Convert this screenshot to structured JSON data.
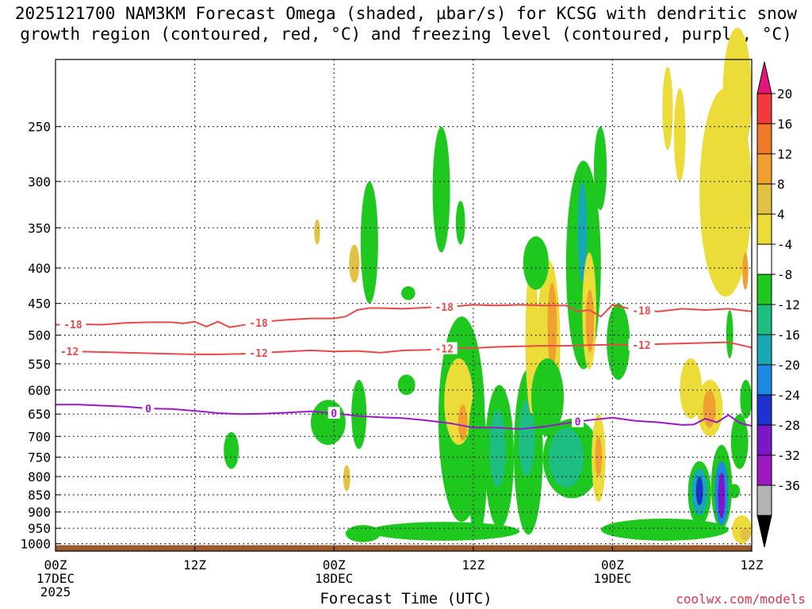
{
  "title": {
    "line1": "2025121700 NAM3KM Forecast Omega (shaded, µbar/s) for KCSG with dendritic snow",
    "line2": "growth region (contoured, red, °C) and freezing level (contoured, purple, °C)"
  },
  "xlabel": "Forecast Time (UTC)",
  "credit": "coolwx.com/models",
  "chart_data": {
    "type": "heatmap",
    "x_unit": "forecast hour from 2025-12-17 00Z",
    "xlim": [
      0,
      60
    ],
    "ylim": [
      1025,
      200
    ],
    "y_scale": "log",
    "grid": true,
    "x_ticks": [
      {
        "x": 0,
        "line1": "00Z",
        "line2": "17DEC",
        "line3": "2025"
      },
      {
        "x": 12,
        "line1": "12Z",
        "line2": "",
        "line3": ""
      },
      {
        "x": 24,
        "line1": "00Z",
        "line2": "18DEC",
        "line3": ""
      },
      {
        "x": 36,
        "line1": "12Z",
        "line2": "",
        "line3": ""
      },
      {
        "x": 48,
        "line1": "00Z",
        "line2": "19DEC",
        "line3": ""
      },
      {
        "x": 60,
        "line1": "12Z",
        "line2": "",
        "line3": ""
      }
    ],
    "y_ticks": [
      "250",
      "300",
      "350",
      "400",
      "450",
      "500",
      "550",
      "600",
      "650",
      "700",
      "750",
      "800",
      "850",
      "900",
      "950",
      "1000"
    ],
    "ground_pressure": 1005,
    "colorbar": {
      "labels": [
        "20",
        "16",
        "12",
        "8",
        "4",
        "-4",
        "-8",
        "-12",
        "-16",
        "-20",
        "-24",
        "-28",
        "-32",
        "-36"
      ],
      "colors": [
        "#e6157a",
        "#f23a3a",
        "#f0782a",
        "#f0a030",
        "#e2c244",
        "#ecdc3a",
        "#ffffff",
        "#1ec81e",
        "#1ebe82",
        "#18a8b4",
        "#1e88e0",
        "#1e32d0",
        "#7a18c8",
        "#a018c0",
        "#b4b4b4",
        "#000000"
      ]
    },
    "omega_colors": {
      "yellow": "#ecdc3a",
      "gold": "#e2c244",
      "orange": "#f0a030",
      "green": "#1ec81e",
      "teal": "#1ebe82",
      "cyan": "#18a8b4",
      "blue": "#1e88e0",
      "navy": "#1e32d0",
      "purple": "#7a18c8"
    },
    "omega_areas": [
      {
        "c": "green",
        "x": [
          14.5,
          15.8
        ],
        "p": [
          690,
          780
        ]
      },
      {
        "c": "gold",
        "x": [
          22.3,
          22.8
        ],
        "p": [
          340,
          370
        ]
      },
      {
        "c": "green",
        "x": [
          25,
          28
        ],
        "p": [
          940,
          995
        ]
      },
      {
        "c": "green",
        "x": [
          27,
          40
        ],
        "p": [
          930,
          990
        ]
      },
      {
        "c": "green",
        "x": [
          22,
          25
        ],
        "p": [
          620,
          720
        ]
      },
      {
        "c": "green",
        "x": [
          25.5,
          26.8
        ],
        "p": [
          580,
          730
        ]
      },
      {
        "c": "gold",
        "x": [
          24.8,
          25.4
        ],
        "p": [
          770,
          840
        ]
      },
      {
        "c": "green",
        "x": [
          26.3,
          27.8
        ],
        "p": [
          300,
          450
        ]
      },
      {
        "c": "gold",
        "x": [
          25.3,
          26.2
        ],
        "p": [
          370,
          420
        ]
      },
      {
        "c": "green",
        "x": [
          29.8,
          31
        ],
        "p": [
          425,
          445
        ]
      },
      {
        "c": "green",
        "x": [
          32.5,
          34
        ],
        "p": [
          250,
          380
        ]
      },
      {
        "c": "green",
        "x": [
          34.5,
          35.3
        ],
        "p": [
          320,
          370
        ]
      },
      {
        "c": "green",
        "x": [
          33,
          37
        ],
        "p": [
          470,
          930
        ]
      },
      {
        "c": "yellow",
        "x": [
          33.5,
          36
        ],
        "p": [
          540,
          720
        ]
      },
      {
        "c": "orange",
        "x": [
          34.7,
          35.5
        ],
        "p": [
          630,
          710
        ]
      },
      {
        "c": "green",
        "x": [
          35.5,
          37.2
        ],
        "p": [
          600,
          980
        ]
      },
      {
        "c": "green",
        "x": [
          37,
          39.5
        ],
        "p": [
          590,
          950
        ]
      },
      {
        "c": "teal",
        "x": [
          37.4,
          38.8
        ],
        "p": [
          640,
          830
        ]
      },
      {
        "c": "green",
        "x": [
          39.5,
          42
        ],
        "p": [
          560,
          970
        ]
      },
      {
        "c": "teal",
        "x": [
          39.9,
          41.3
        ],
        "p": [
          620,
          800
        ]
      },
      {
        "c": "yellow",
        "x": [
          40.5,
          41.6
        ],
        "p": [
          390,
          650
        ]
      },
      {
        "c": "yellow",
        "x": [
          41.5,
          43.5
        ],
        "p": [
          390,
          680
        ]
      },
      {
        "c": "orange",
        "x": [
          42.4,
          43.2
        ],
        "p": [
          420,
          560
        ]
      },
      {
        "c": "green",
        "x": [
          40.3,
          42.5
        ],
        "p": [
          360,
          430
        ]
      },
      {
        "c": "green",
        "x": [
          44,
          47
        ],
        "p": [
          280,
          560
        ]
      },
      {
        "c": "cyan",
        "x": [
          45,
          45.8
        ],
        "p": [
          300,
          420
        ]
      },
      {
        "c": "yellow",
        "x": [
          45.4,
          46.6
        ],
        "p": [
          380,
          560
        ]
      },
      {
        "c": "orange",
        "x": [
          45.7,
          46.4
        ],
        "p": [
          430,
          530
        ]
      },
      {
        "c": "green",
        "x": [
          46.4,
          47.5
        ],
        "p": [
          250,
          330
        ]
      },
      {
        "c": "green",
        "x": [
          41,
          43.8
        ],
        "p": [
          540,
          700
        ]
      },
      {
        "c": "green",
        "x": [
          42,
          47
        ],
        "p": [
          660,
          860
        ]
      },
      {
        "c": "teal",
        "x": [
          42.5,
          45.5
        ],
        "p": [
          680,
          830
        ]
      },
      {
        "c": "yellow",
        "x": [
          46.2,
          47.4
        ],
        "p": [
          650,
          870
        ]
      },
      {
        "c": "orange",
        "x": [
          46.5,
          47.1
        ],
        "p": [
          700,
          800
        ]
      },
      {
        "c": "green",
        "x": [
          47.5,
          49.5
        ],
        "p": [
          450,
          580
        ]
      },
      {
        "c": "green",
        "x": [
          47,
          58
        ],
        "p": [
          920,
          990
        ]
      },
      {
        "c": "yellow",
        "x": [
          52.3,
          53.2
        ],
        "p": [
          205,
          270
        ]
      },
      {
        "c": "yellow",
        "x": [
          53.3,
          54.3
        ],
        "p": [
          220,
          300
        ]
      },
      {
        "c": "yellow",
        "x": [
          53.8,
          55.7
        ],
        "p": [
          540,
          660
        ]
      },
      {
        "c": "yellow",
        "x": [
          55.3,
          57.5
        ],
        "p": [
          580,
          700
        ]
      },
      {
        "c": "orange",
        "x": [
          55.8,
          56.9
        ],
        "p": [
          600,
          680
        ]
      },
      {
        "c": "green",
        "x": [
          54.5,
          56.5
        ],
        "p": [
          760,
          940
        ]
      },
      {
        "c": "cyan",
        "x": [
          54.8,
          56.2
        ],
        "p": [
          780,
          910
        ]
      },
      {
        "c": "navy",
        "x": [
          55.2,
          55.8
        ],
        "p": [
          800,
          880
        ]
      },
      {
        "c": "green",
        "x": [
          56.5,
          58.3
        ],
        "p": [
          720,
          950
        ]
      },
      {
        "c": "blue",
        "x": [
          56.8,
          58
        ],
        "p": [
          760,
          940
        ]
      },
      {
        "c": "purple",
        "x": [
          57.1,
          57.7
        ],
        "p": [
          790,
          920
        ]
      },
      {
        "c": "green",
        "x": [
          57.8,
          58.4
        ],
        "p": [
          460,
          540
        ]
      },
      {
        "c": "green",
        "x": [
          58,
          59
        ],
        "p": [
          820,
          860
        ]
      },
      {
        "c": "green",
        "x": [
          58.2,
          59.7
        ],
        "p": [
          650,
          780
        ]
      },
      {
        "c": "green",
        "x": [
          59,
          60
        ],
        "p": [
          580,
          660
        ]
      },
      {
        "c": "yellow",
        "x": [
          55.5,
          60
        ],
        "p": [
          220,
          440
        ]
      },
      {
        "c": "yellow",
        "x": [
          57.5,
          60
        ],
        "p": [
          180,
          280
        ]
      },
      {
        "c": "orange",
        "x": [
          59.2,
          59.7
        ],
        "p": [
          380,
          430
        ]
      },
      {
        "c": "green",
        "x": [
          59.5,
          60
        ],
        "p": [
          600,
          650
        ]
      },
      {
        "c": "yellow",
        "x": [
          58.3,
          60
        ],
        "p": [
          910,
          1000
        ]
      },
      {
        "c": "gold",
        "x": [
          59,
          59.9
        ],
        "p": [
          950,
          990
        ]
      },
      {
        "c": "green",
        "x": [
          29.5,
          31
        ],
        "p": [
          570,
          610
        ]
      }
    ],
    "contours": [
      {
        "label": "-18",
        "color": "#e84a4a",
        "label_x": [
          1.5,
          17.5,
          33.5,
          50.5
        ],
        "x": [
          0,
          2,
          4,
          6,
          8,
          10,
          11,
          12,
          13,
          14,
          15,
          16,
          18,
          20,
          22,
          24,
          25,
          26,
          27,
          28,
          30,
          32,
          34,
          36,
          38,
          40,
          42,
          44,
          45,
          46,
          47,
          48,
          50,
          52,
          54,
          56,
          58,
          60
        ],
        "p": [
          483,
          482,
          483,
          480,
          479,
          479,
          481,
          478,
          486,
          478,
          487,
          484,
          478,
          475,
          473,
          473,
          470,
          460,
          457,
          457,
          458,
          456,
          455,
          452,
          453,
          452,
          453,
          453,
          462,
          460,
          470,
          452,
          460,
          462,
          458,
          460,
          458,
          462
        ]
      },
      {
        "label": "-12",
        "color": "#e84a4a",
        "label_x": [
          1.2,
          17.5,
          33.5,
          50.5
        ],
        "x": [
          0,
          2,
          4,
          6,
          8,
          10,
          12,
          14,
          16,
          18,
          20,
          22,
          24,
          26,
          28,
          30,
          32,
          34,
          36,
          38,
          40,
          42,
          44,
          46,
          48,
          50,
          52,
          54,
          56,
          58,
          60
        ],
        "p": [
          527,
          528,
          529,
          530,
          531,
          532,
          533,
          533,
          532,
          530,
          528,
          526,
          528,
          527,
          530,
          526,
          525,
          522,
          522,
          520,
          519,
          518,
          518,
          517,
          516,
          517,
          515,
          514,
          513,
          512,
          521
        ]
      },
      {
        "label": "0",
        "color": "#9a18c8",
        "label_x": [
          8,
          24,
          45
        ],
        "x": [
          0,
          2,
          4,
          6,
          8,
          10,
          12,
          14,
          16,
          18,
          20,
          22,
          24,
          26,
          28,
          30,
          32,
          34,
          36,
          38,
          40,
          42,
          44,
          46,
          48,
          50,
          52,
          54,
          55,
          56,
          57,
          58,
          59,
          60
        ],
        "p": [
          630,
          630,
          632,
          634,
          638,
          639,
          643,
          648,
          650,
          649,
          647,
          644,
          648,
          654,
          657,
          659,
          664,
          670,
          680,
          680,
          683,
          678,
          670,
          663,
          658,
          665,
          668,
          674,
          673,
          660,
          668,
          652,
          670,
          676
        ]
      }
    ]
  }
}
